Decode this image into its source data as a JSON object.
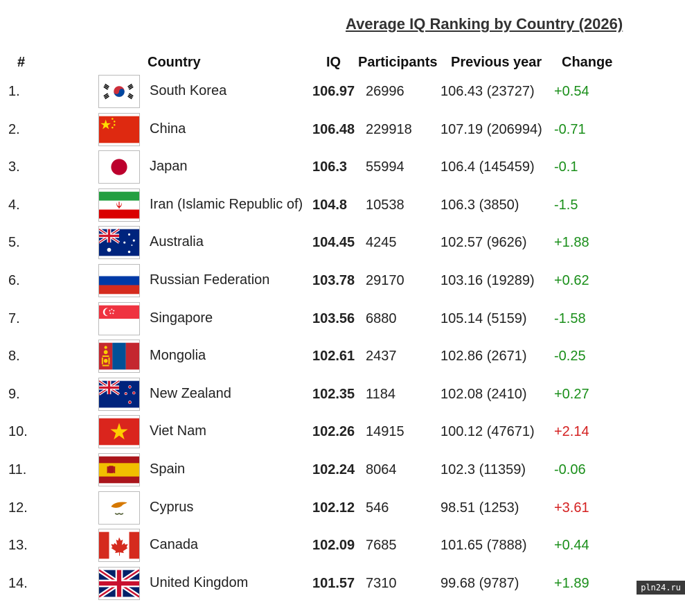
{
  "title": "Average IQ Ranking by Country (2026)",
  "headers": {
    "rank": "#",
    "country": "Country",
    "iq": "IQ",
    "participants": "Participants",
    "previous": "Previous year",
    "change": "Change"
  },
  "colors": {
    "positive": "#1a8f1a",
    "negative": "#d42020"
  },
  "rows": [
    {
      "rank": "1.",
      "flag_icon": "south-korea-flag-icon",
      "country": "South Korea",
      "iq": "106.97",
      "participants": "26996",
      "previous": "106.43 (23727)",
      "change": "+0.54",
      "change_color": "#1a8f1a"
    },
    {
      "rank": "2.",
      "flag_icon": "china-flag-icon",
      "country": "China",
      "iq": "106.48",
      "participants": "229918",
      "previous": "107.19 (206994)",
      "change": "-0.71",
      "change_color": "#1a8f1a"
    },
    {
      "rank": "3.",
      "flag_icon": "japan-flag-icon",
      "country": "Japan",
      "iq": "106.3",
      "participants": "55994",
      "previous": "106.4 (145459)",
      "change": "-0.1",
      "change_color": "#1a8f1a"
    },
    {
      "rank": "4.",
      "flag_icon": "iran-flag-icon",
      "country": "Iran (Islamic Republic of)",
      "iq": "104.8",
      "participants": "10538",
      "previous": "106.3 (3850)",
      "change": "-1.5",
      "change_color": "#1a8f1a"
    },
    {
      "rank": "5.",
      "flag_icon": "australia-flag-icon",
      "country": "Australia",
      "iq": "104.45",
      "participants": "4245",
      "previous": "102.57 (9626)",
      "change": "+1.88",
      "change_color": "#1a8f1a"
    },
    {
      "rank": "6.",
      "flag_icon": "russia-flag-icon",
      "country": "Russian Federation",
      "iq": "103.78",
      "participants": "29170",
      "previous": "103.16 (19289)",
      "change": "+0.62",
      "change_color": "#1a8f1a"
    },
    {
      "rank": "7.",
      "flag_icon": "singapore-flag-icon",
      "country": "Singapore",
      "iq": "103.56",
      "participants": "6880",
      "previous": "105.14 (5159)",
      "change": "-1.58",
      "change_color": "#1a8f1a"
    },
    {
      "rank": "8.",
      "flag_icon": "mongolia-flag-icon",
      "country": "Mongolia",
      "iq": "102.61",
      "participants": "2437",
      "previous": "102.86 (2671)",
      "change": "-0.25",
      "change_color": "#1a8f1a"
    },
    {
      "rank": "9.",
      "flag_icon": "new-zealand-flag-icon",
      "country": "New Zealand",
      "iq": "102.35",
      "participants": "1184",
      "previous": "102.08 (2410)",
      "change": "+0.27",
      "change_color": "#1a8f1a"
    },
    {
      "rank": "10.",
      "flag_icon": "vietnam-flag-icon",
      "country": "Viet Nam",
      "iq": "102.26",
      "participants": "14915",
      "previous": "100.12 (47671)",
      "change": "+2.14",
      "change_color": "#d42020"
    },
    {
      "rank": "11.",
      "flag_icon": "spain-flag-icon",
      "country": "Spain",
      "iq": "102.24",
      "participants": "8064",
      "previous": "102.3 (11359)",
      "change": "-0.06",
      "change_color": "#1a8f1a"
    },
    {
      "rank": "12.",
      "flag_icon": "cyprus-flag-icon",
      "country": "Cyprus",
      "iq": "102.12",
      "participants": "546",
      "previous": "98.51 (1253)",
      "change": "+3.61",
      "change_color": "#d42020"
    },
    {
      "rank": "13.",
      "flag_icon": "canada-flag-icon",
      "country": "Canada",
      "iq": "102.09",
      "participants": "7685",
      "previous": "101.65 (7888)",
      "change": "+0.44",
      "change_color": "#1a8f1a"
    },
    {
      "rank": "14.",
      "flag_icon": "united-kingdom-flag-icon",
      "country": "United Kingdom",
      "iq": "101.57",
      "participants": "7310",
      "previous": "99.68 (9787)",
      "change": "+1.89",
      "change_color": "#1a8f1a"
    }
  ],
  "watermark": "pln24.ru"
}
